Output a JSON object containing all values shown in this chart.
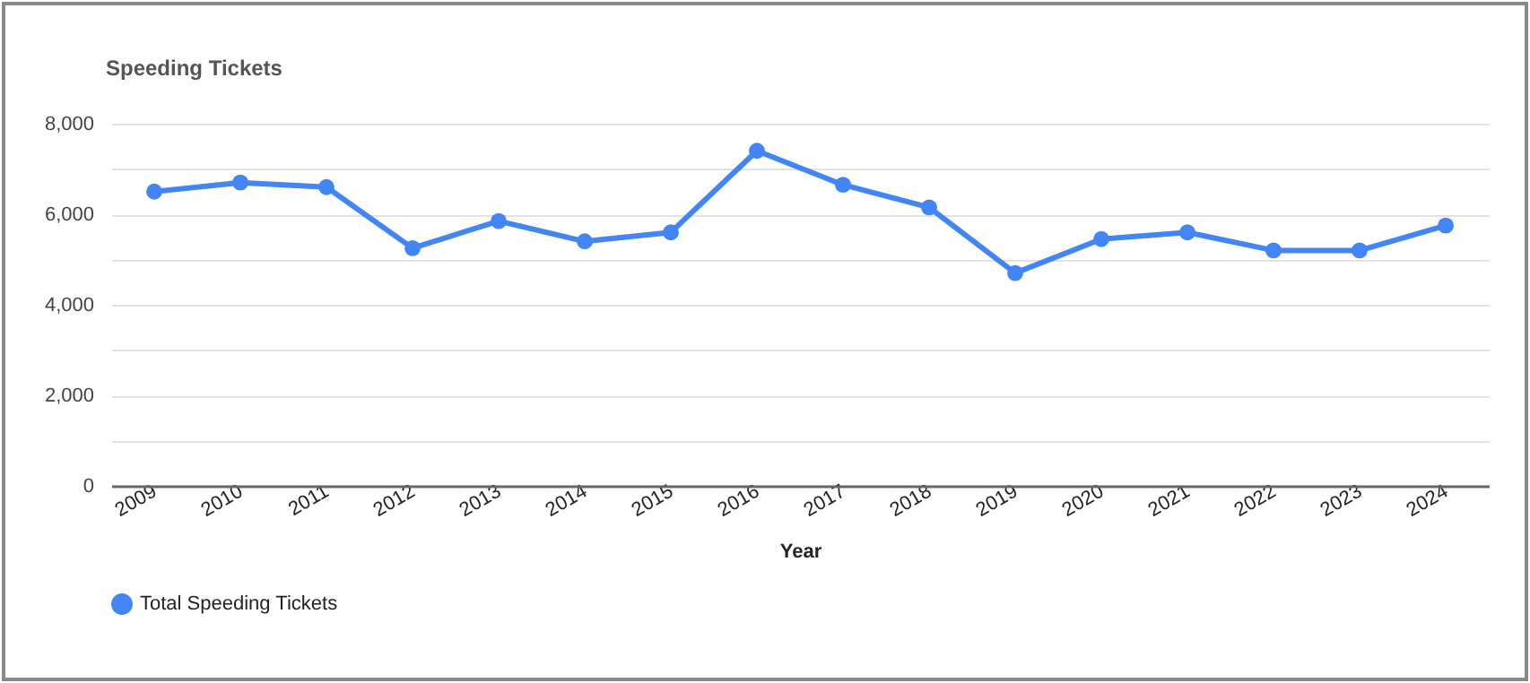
{
  "chart_data": {
    "type": "line",
    "title": "Speeding Tickets",
    "xlabel": "Year",
    "categories": [
      "2009",
      "2010",
      "2011",
      "2012",
      "2013",
      "2014",
      "2015",
      "2016",
      "2017",
      "2018",
      "2019",
      "2020",
      "2021",
      "2022",
      "2023",
      "2024"
    ],
    "series": [
      {
        "name": "Total Speeding Tickets",
        "color": "#4285f4",
        "values": [
          6500,
          6700,
          6600,
          5250,
          5850,
          5400,
          5600,
          7400,
          6650,
          6150,
          4700,
          5450,
          5600,
          5200,
          5200,
          5750
        ]
      }
    ],
    "ylim": [
      0,
      8000
    ],
    "yticks": [
      0,
      {
        "value": 1000,
        "label": null
      },
      {
        "value": 2000,
        "label": "2,000"
      },
      {
        "value": 3000,
        "label": null
      },
      {
        "value": 4000,
        "label": "4,000"
      },
      {
        "value": 5000,
        "label": null
      },
      {
        "value": 6000,
        "label": "6,000"
      },
      {
        "value": 7000,
        "label": null
      },
      {
        "value": 8000,
        "label": "8,000"
      }
    ],
    "grid": "y",
    "legend": "bottom",
    "marker": "circle",
    "line_style": "solid"
  }
}
